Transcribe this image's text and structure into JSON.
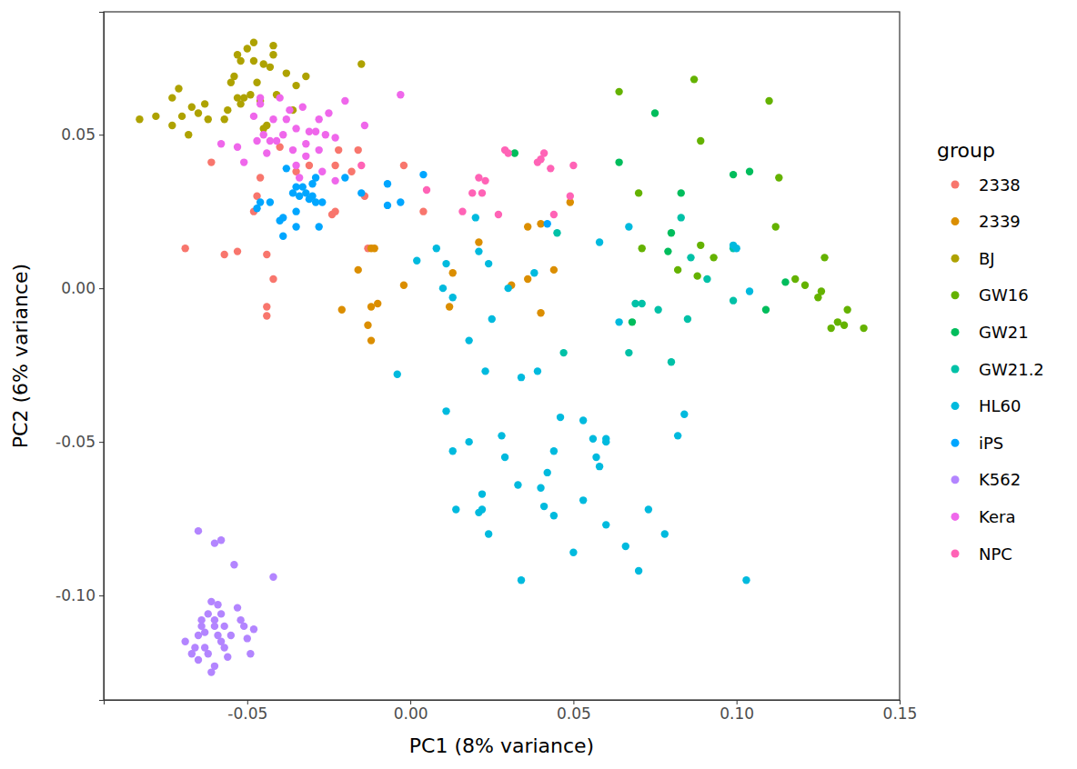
{
  "chart_data": {
    "type": "scatter",
    "marker": "circle",
    "grid": false,
    "legend": "right",
    "legend_title": "group",
    "x_label": "PC1 (8% variance)",
    "y_label": "PC2 (6% variance)",
    "xlim": [
      -0.094,
      0.15
    ],
    "ylim": [
      -0.134,
      0.09
    ],
    "xticks": [
      -0.05,
      {
        "value": 0,
        "label": "0.00"
      },
      0.05,
      {
        "value": 0.1,
        "label": "0.10"
      },
      0.15
    ],
    "yticks": [
      {
        "value": -0.1,
        "label": "-0.10"
      },
      -0.05,
      {
        "value": 0,
        "label": "0.00"
      },
      0.05
    ],
    "series": [
      {
        "name": "2338",
        "color": "#F8766D",
        "x": [
          -0.069,
          -0.061,
          -0.057,
          -0.053,
          -0.048,
          -0.047,
          -0.046,
          -0.044,
          -0.044,
          -0.044,
          -0.042,
          -0.035,
          -0.031,
          -0.024,
          -0.023,
          -0.023,
          -0.018,
          -0.016,
          -0.014,
          -0.013,
          -0.002,
          0.004,
          -0.04,
          -0.022
        ],
        "values": [
          0.013,
          0.041,
          0.011,
          0.012,
          0.025,
          0.03,
          0.036,
          0.011,
          -0.006,
          -0.009,
          0.003,
          0.038,
          0.04,
          0.024,
          0.025,
          0.04,
          0.038,
          0.045,
          0.03,
          0.013,
          0.04,
          0.025,
          0.046,
          0.045
        ]
      },
      {
        "name": "2339",
        "color": "#DB8E00",
        "x": [
          -0.021,
          -0.016,
          -0.013,
          -0.012,
          -0.012,
          -0.012,
          -0.011,
          -0.01,
          -0.002,
          0.012,
          0.013,
          0.021,
          0.031,
          0.036,
          0.036,
          0.04,
          0.04,
          0.044,
          0.049
        ],
        "values": [
          -0.007,
          0.006,
          -0.012,
          -0.006,
          -0.017,
          0.013,
          0.013,
          -0.005,
          0.001,
          -0.006,
          0.005,
          0.015,
          0.001,
          0.003,
          0.02,
          0.021,
          -0.008,
          0.006,
          0.028
        ]
      },
      {
        "name": "BJ",
        "color": "#AEA200",
        "x": [
          -0.083,
          -0.078,
          -0.073,
          -0.073,
          -0.071,
          -0.07,
          -0.068,
          -0.067,
          -0.065,
          -0.063,
          -0.062,
          -0.057,
          -0.056,
          -0.055,
          -0.054,
          -0.053,
          -0.053,
          -0.052,
          -0.051,
          -0.05,
          -0.049,
          -0.048,
          -0.048,
          -0.047,
          -0.046,
          -0.045,
          -0.044,
          -0.043,
          -0.042,
          -0.042,
          -0.041,
          -0.038,
          -0.036,
          -0.035,
          -0.032,
          -0.015,
          -0.052,
          -0.045
        ],
        "values": [
          0.055,
          0.056,
          0.062,
          0.053,
          0.065,
          0.056,
          0.05,
          0.059,
          0.057,
          0.06,
          0.055,
          0.055,
          0.058,
          0.067,
          0.069,
          0.062,
          0.076,
          0.074,
          0.062,
          0.078,
          0.063,
          0.08,
          0.074,
          0.067,
          0.061,
          0.073,
          0.053,
          0.072,
          0.079,
          0.076,
          0.063,
          0.07,
          0.058,
          0.066,
          0.069,
          0.073,
          0.06,
          0.052
        ]
      },
      {
        "name": "GW16",
        "color": "#64B200",
        "x": [
          0.064,
          0.07,
          0.071,
          0.082,
          0.087,
          0.088,
          0.089,
          0.089,
          0.093,
          0.11,
          0.112,
          0.113,
          0.118,
          0.121,
          0.125,
          0.126,
          0.127,
          0.129,
          0.131,
          0.133,
          0.134,
          0.139
        ],
        "values": [
          0.064,
          0.031,
          0.013,
          0.006,
          0.068,
          0.004,
          0.014,
          0.048,
          0.01,
          0.061,
          0.02,
          0.036,
          0.003,
          0.001,
          -0.003,
          -0.001,
          0.01,
          -0.013,
          -0.011,
          -0.012,
          -0.007,
          -0.013
        ]
      },
      {
        "name": "GW21",
        "color": "#00BD5C",
        "x": [
          0.032,
          0.064,
          0.068,
          0.075,
          0.079,
          0.08,
          0.083,
          0.099,
          0.104,
          0.109,
          0.115
        ],
        "values": [
          0.044,
          0.041,
          -0.011,
          0.057,
          0.012,
          0.018,
          0.031,
          0.037,
          0.038,
          -0.007,
          0.002
        ]
      },
      {
        "name": "GW21.2",
        "color": "#00C1A7",
        "x": [
          0.045,
          0.047,
          0.067,
          0.069,
          0.071,
          0.076,
          0.08,
          0.083,
          0.085,
          0.086,
          0.091,
          0.099,
          0.099
        ],
        "values": [
          0.018,
          -0.021,
          -0.021,
          -0.005,
          -0.005,
          -0.007,
          -0.024,
          0.023,
          -0.01,
          0.01,
          0.003,
          -0.004,
          0.013
        ]
      },
      {
        "name": "HL60",
        "color": "#00BADE",
        "x": [
          -0.004,
          0.002,
          0.008,
          0.01,
          0.011,
          0.011,
          0.013,
          0.013,
          0.014,
          0.018,
          0.018,
          0.02,
          0.021,
          0.021,
          0.022,
          0.022,
          0.023,
          0.024,
          0.024,
          0.028,
          0.029,
          0.03,
          0.033,
          0.034,
          0.034,
          0.038,
          0.039,
          0.04,
          0.041,
          0.042,
          0.044,
          0.044,
          0.046,
          0.05,
          0.053,
          0.053,
          0.056,
          0.057,
          0.058,
          0.058,
          0.06,
          0.06,
          0.06,
          0.064,
          0.066,
          0.067,
          0.07,
          0.073,
          0.078,
          0.082,
          0.084,
          0.099,
          0.1,
          0.103,
          0.104,
          0.025
        ],
        "values": [
          -0.028,
          0.009,
          0.013,
          0.0,
          -0.04,
          0.008,
          -0.053,
          -0.003,
          -0.072,
          -0.017,
          -0.05,
          0.023,
          0.012,
          -0.073,
          -0.067,
          -0.072,
          -0.027,
          -0.08,
          0.008,
          -0.048,
          -0.055,
          0.0,
          -0.064,
          -0.095,
          -0.029,
          0.005,
          -0.027,
          -0.065,
          -0.071,
          -0.06,
          -0.053,
          -0.074,
          -0.042,
          -0.086,
          -0.069,
          -0.043,
          -0.049,
          -0.055,
          -0.058,
          0.015,
          -0.049,
          -0.05,
          -0.077,
          -0.011,
          -0.084,
          0.02,
          -0.092,
          -0.072,
          -0.08,
          -0.048,
          -0.041,
          0.014,
          0.013,
          -0.095,
          -0.001,
          -0.01
        ]
      },
      {
        "name": "iPS",
        "color": "#00A6FF",
        "x": [
          -0.047,
          -0.046,
          -0.043,
          -0.04,
          -0.039,
          -0.039,
          -0.038,
          -0.036,
          -0.035,
          -0.035,
          -0.035,
          -0.034,
          -0.033,
          -0.032,
          -0.031,
          -0.03,
          -0.029,
          -0.029,
          -0.028,
          -0.027,
          -0.02,
          -0.015,
          -0.007,
          -0.007,
          -0.003,
          0.004,
          -0.03,
          0.042
        ],
        "values": [
          0.026,
          0.028,
          0.028,
          0.022,
          0.023,
          0.017,
          0.039,
          0.031,
          0.025,
          0.02,
          0.033,
          0.03,
          0.033,
          0.031,
          0.029,
          0.03,
          0.028,
          0.036,
          0.02,
          0.028,
          0.036,
          0.031,
          0.034,
          0.027,
          0.028,
          0.037,
          0.034,
          0.021
        ]
      },
      {
        "name": "K562",
        "color": "#B385FF",
        "x": [
          -0.069,
          -0.067,
          -0.066,
          -0.065,
          -0.065,
          -0.064,
          -0.064,
          -0.063,
          -0.063,
          -0.062,
          -0.062,
          -0.061,
          -0.061,
          -0.06,
          -0.06,
          -0.059,
          -0.059,
          -0.058,
          -0.058,
          -0.057,
          -0.056,
          -0.055,
          -0.054,
          -0.053,
          -0.052,
          -0.051,
          -0.05,
          -0.049,
          -0.048,
          -0.065,
          -0.06,
          -0.058,
          -0.042,
          -0.06,
          -0.057
        ],
        "values": [
          -0.115,
          -0.119,
          -0.117,
          -0.121,
          -0.113,
          -0.11,
          -0.108,
          -0.112,
          -0.117,
          -0.106,
          -0.119,
          -0.102,
          -0.125,
          -0.108,
          -0.11,
          -0.103,
          -0.113,
          -0.106,
          -0.115,
          -0.11,
          -0.12,
          -0.113,
          -0.09,
          -0.104,
          -0.108,
          -0.11,
          -0.114,
          -0.119,
          -0.111,
          -0.079,
          -0.083,
          -0.082,
          -0.094,
          -0.123,
          -0.117
        ]
      },
      {
        "name": "Kera",
        "color": "#EF67EB",
        "x": [
          -0.058,
          -0.053,
          -0.051,
          -0.048,
          -0.047,
          -0.046,
          -0.045,
          -0.044,
          -0.043,
          -0.042,
          -0.041,
          -0.04,
          -0.039,
          -0.037,
          -0.036,
          -0.035,
          -0.035,
          -0.034,
          -0.033,
          -0.032,
          -0.031,
          -0.029,
          -0.028,
          -0.028,
          -0.027,
          -0.026,
          -0.025,
          -0.023,
          -0.023,
          -0.02,
          -0.014,
          -0.003,
          -0.046,
          -0.038,
          -0.032
        ],
        "values": [
          0.047,
          0.046,
          0.041,
          0.056,
          0.048,
          0.062,
          0.05,
          0.044,
          0.048,
          0.055,
          0.048,
          0.062,
          0.05,
          0.058,
          0.045,
          0.052,
          0.04,
          0.036,
          0.059,
          0.047,
          0.051,
          0.051,
          0.045,
          0.055,
          0.038,
          0.05,
          0.057,
          0.049,
          0.035,
          0.061,
          0.053,
          0.063,
          0.06,
          0.055,
          0.043
        ]
      },
      {
        "name": "NPC",
        "color": "#FF63B6",
        "x": [
          -0.015,
          0.005,
          0.016,
          0.019,
          0.021,
          0.022,
          0.023,
          0.027,
          0.029,
          0.039,
          0.04,
          0.041,
          0.043,
          0.044,
          0.049,
          0.05,
          0.03
        ],
        "values": [
          0.04,
          0.032,
          0.025,
          0.031,
          0.036,
          0.031,
          0.035,
          0.024,
          0.045,
          0.041,
          0.042,
          0.044,
          0.039,
          0.024,
          0.03,
          0.04,
          0.044
        ]
      }
    ]
  }
}
